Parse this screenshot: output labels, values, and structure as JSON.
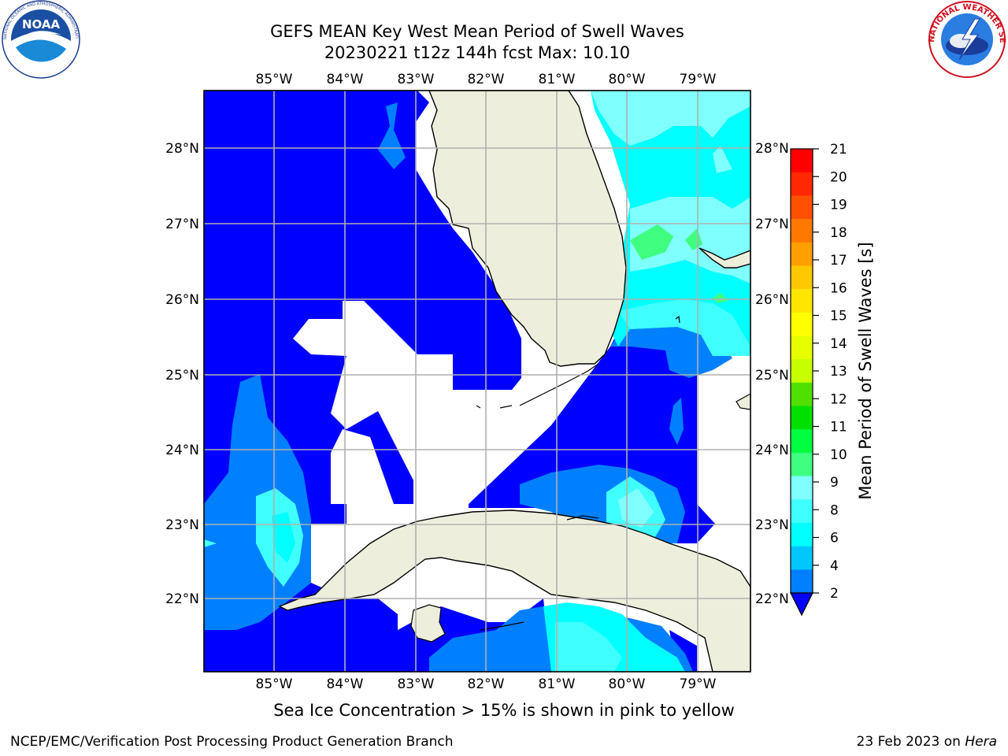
{
  "header": {
    "title_line1": "GEFS MEAN Key West Mean Period of Swell Waves",
    "title_line2": "20230221 t12z 144h fcst   Max: 10.10"
  },
  "logos": {
    "left": {
      "name": "noaa-logo",
      "text": "NOAA",
      "ring_text": "NATIONAL OCEANIC AND ATMOSPHERIC ADMINISTRATION · U.S. DEPARTMENT OF COMMERCE"
    },
    "right": {
      "name": "nws-logo",
      "ring_text": "NATIONAL WEATHER SERVICE"
    }
  },
  "map": {
    "lon_labels": [
      "85°W",
      "84°W",
      "83°W",
      "82°W",
      "81°W",
      "80°W",
      "79°W"
    ],
    "lat_labels": [
      "28°N",
      "27°N",
      "26°N",
      "25°N",
      "24°N",
      "23°N",
      "22°N"
    ],
    "colors": {
      "deep_blue": "#0000ff",
      "mid_blue": "#0080ff",
      "land": "#eeeedd",
      "cyan": "#00ffff",
      "light_cyan": "#40ffff",
      "pale_cyan": "#80ffff",
      "green": "#40ff80",
      "grid": "#b0b0b0"
    }
  },
  "colorbar": {
    "label": "Mean Period of Swell Waves [s]",
    "ticks": [
      "21",
      "20",
      "19",
      "18",
      "17",
      "16",
      "15",
      "14",
      "13",
      "12",
      "11",
      "10",
      "9",
      "8",
      "6",
      "4",
      "2"
    ],
    "bands": [
      "#ff0000",
      "#ff2800",
      "#ff5000",
      "#ff7800",
      "#ff9f00",
      "#ffc800",
      "#ffe600",
      "#ffff00",
      "#e6ff00",
      "#c8ff00",
      "#50e000",
      "#00e000",
      "#00ff40",
      "#40ff80",
      "#80ffff",
      "#40ffff",
      "#00ffff",
      "#00c8ff",
      "#0080ff"
    ],
    "underflow_color": "#0000ff"
  },
  "caption": "Sea Ice Concentration > 15% is shown in pink to yellow",
  "footer": {
    "left": "NCEP/EMC/Verification Post Processing Product Generation Branch",
    "right_prefix": "23 Feb 2023 on ",
    "right_host": "Hera"
  }
}
